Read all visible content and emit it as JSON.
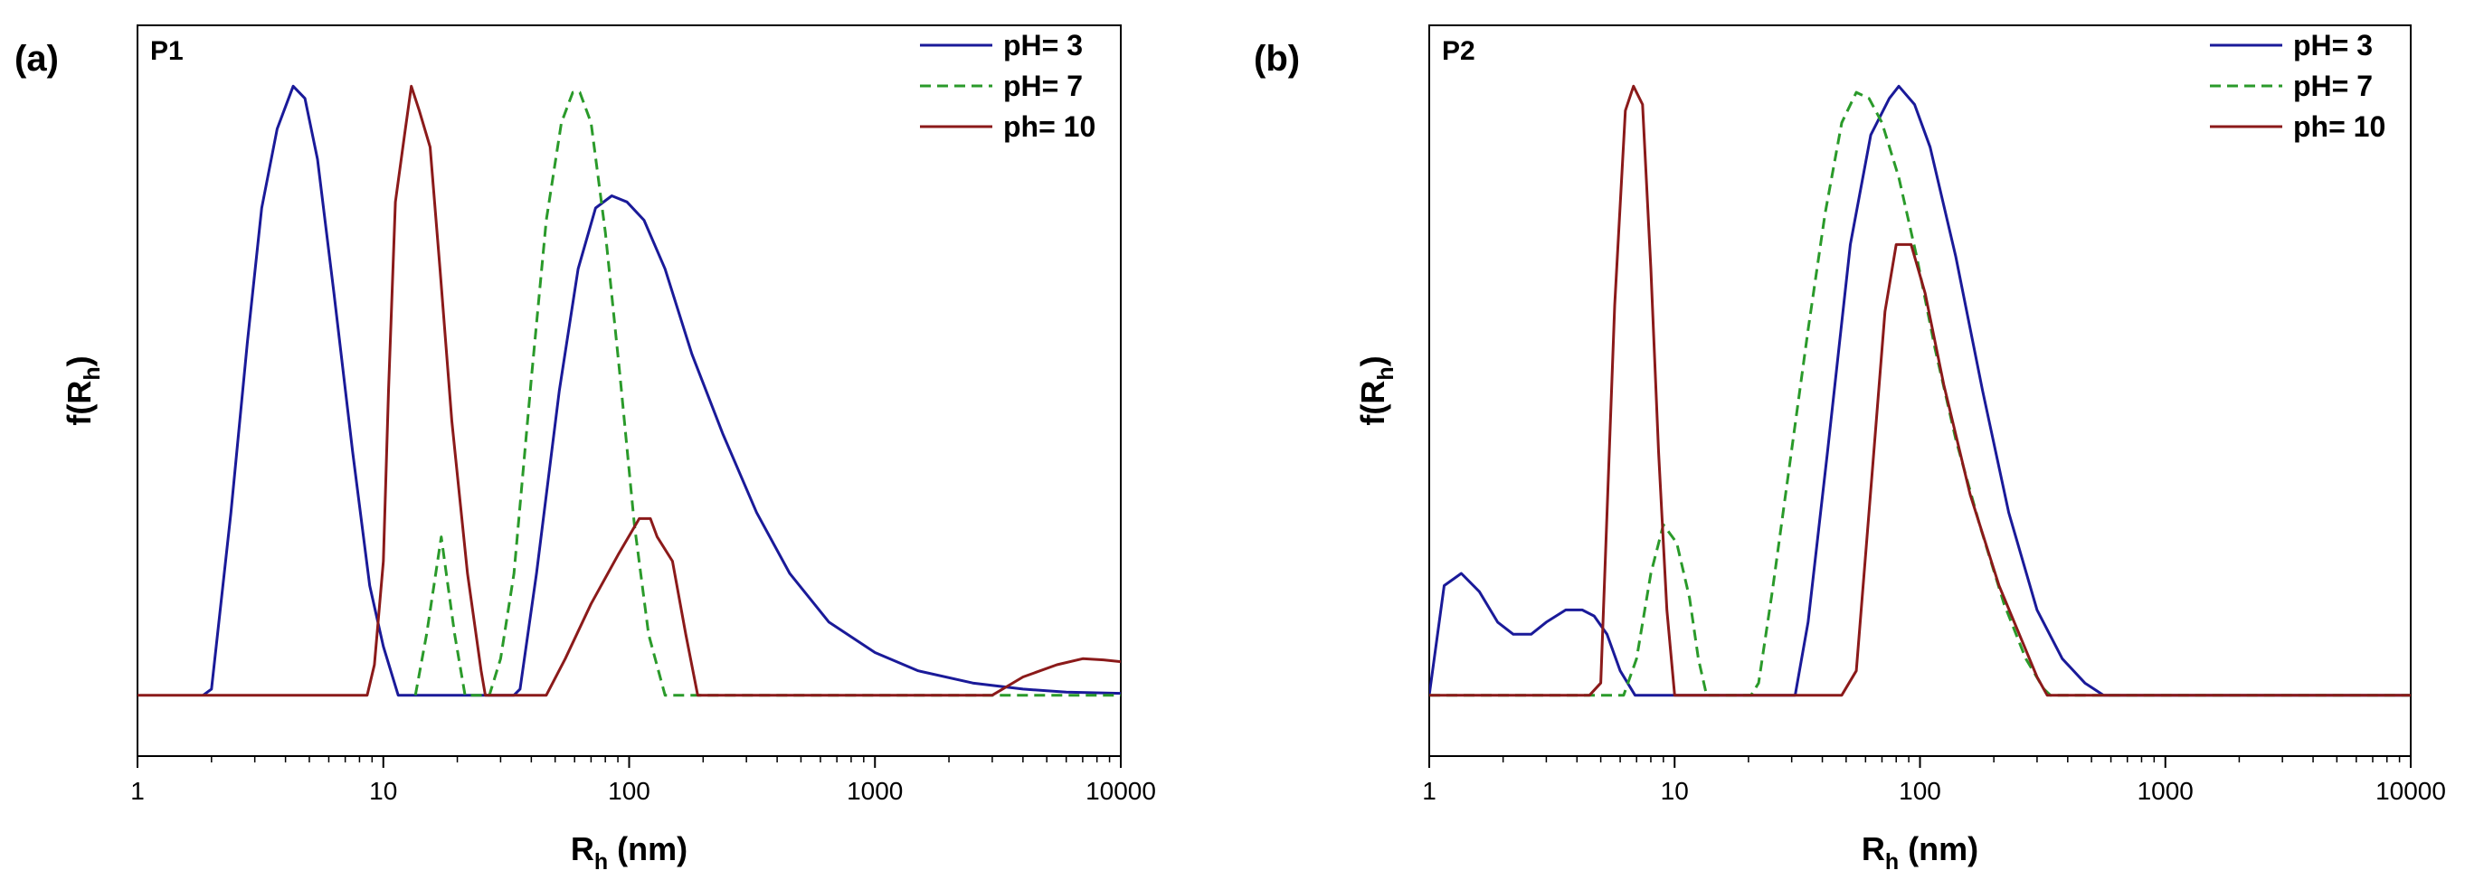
{
  "chart_data": [
    {
      "type": "line",
      "panel_label": "(a)",
      "title": "P1",
      "xlabel_main": "R",
      "xlabel_sub": "h",
      "xlabel_unit": " (nm)",
      "ylabel_main": "f(R",
      "ylabel_sub": "h",
      "ylabel_close": ")",
      "xscale": "log",
      "xlim": [
        1,
        10000
      ],
      "ylim": [
        -0.1,
        1.1
      ],
      "x_ticks": [
        1,
        10,
        100,
        1000,
        10000
      ],
      "x_tick_labels": [
        "1",
        "10",
        "100",
        "1000",
        "10000"
      ],
      "legend_position": "top-right",
      "series": [
        {
          "name": "pH= 3",
          "color": "#1a1a99",
          "dash": "solid",
          "points": [
            [
              1.85,
              0
            ],
            [
              2.0,
              0.01
            ],
            [
              2.4,
              0.3
            ],
            [
              2.8,
              0.58
            ],
            [
              3.2,
              0.8
            ],
            [
              3.7,
              0.93
            ],
            [
              4.3,
              1.0
            ],
            [
              4.8,
              0.98
            ],
            [
              5.4,
              0.88
            ],
            [
              6.3,
              0.66
            ],
            [
              7.5,
              0.4
            ],
            [
              8.8,
              0.18
            ],
            [
              10,
              0.08
            ],
            [
              11.5,
              0
            ],
            [
              34,
              0
            ],
            [
              36,
              0.01
            ],
            [
              42,
              0.2
            ],
            [
              52,
              0.5
            ],
            [
              62,
              0.7
            ],
            [
              73,
              0.8
            ],
            [
              85,
              0.82
            ],
            [
              98,
              0.81
            ],
            [
              115,
              0.78
            ],
            [
              140,
              0.7
            ],
            [
              180,
              0.56
            ],
            [
              240,
              0.43
            ],
            [
              330,
              0.3
            ],
            [
              450,
              0.2
            ],
            [
              650,
              0.12
            ],
            [
              1000,
              0.07
            ],
            [
              1500,
              0.04
            ],
            [
              2500,
              0.02
            ],
            [
              4000,
              0.01
            ],
            [
              6000,
              0.005
            ],
            [
              10000,
              0.003
            ]
          ]
        },
        {
          "name": "pH= 7",
          "color": "#2a9a2a",
          "dash": "dashed",
          "points": [
            [
              13.5,
              0
            ],
            [
              15,
              0.1
            ],
            [
              17.2,
              0.26
            ],
            [
              19.5,
              0.1
            ],
            [
              21.5,
              0
            ],
            [
              27,
              0
            ],
            [
              30,
              0.06
            ],
            [
              34,
              0.2
            ],
            [
              40,
              0.52
            ],
            [
              46,
              0.78
            ],
            [
              53,
              0.94
            ],
            [
              59,
              0.99
            ],
            [
              63,
              0.99
            ],
            [
              70,
              0.94
            ],
            [
              80,
              0.76
            ],
            [
              92,
              0.52
            ],
            [
              105,
              0.28
            ],
            [
              120,
              0.1
            ],
            [
              140,
              0
            ],
            [
              10000,
              0
            ]
          ]
        },
        {
          "name": "ph= 10",
          "color": "#8b1a1a",
          "dash": "solid",
          "points": [
            [
              1,
              0
            ],
            [
              8.6,
              0
            ],
            [
              9.2,
              0.05
            ],
            [
              10,
              0.22
            ],
            [
              10.5,
              0.5
            ],
            [
              11.2,
              0.81
            ],
            [
              12.2,
              0.92
            ],
            [
              13,
              1.0
            ],
            [
              14,
              0.96
            ],
            [
              15.5,
              0.9
            ],
            [
              17,
              0.7
            ],
            [
              19,
              0.45
            ],
            [
              22,
              0.2
            ],
            [
              25,
              0.04
            ],
            [
              26,
              0
            ],
            [
              46,
              0
            ],
            [
              55,
              0.06
            ],
            [
              70,
              0.15
            ],
            [
              90,
              0.23
            ],
            [
              110,
              0.29
            ],
            [
              122,
              0.29
            ],
            [
              130,
              0.26
            ],
            [
              150,
              0.22
            ],
            [
              170,
              0.1
            ],
            [
              190,
              0
            ],
            [
              3000,
              0
            ],
            [
              4000,
              0.03
            ],
            [
              5500,
              0.05
            ],
            [
              7000,
              0.06
            ],
            [
              8500,
              0.058
            ],
            [
              10000,
              0.055
            ]
          ]
        }
      ]
    },
    {
      "type": "line",
      "panel_label": "(b)",
      "title": "P2",
      "xlabel_main": "R",
      "xlabel_sub": "h",
      "xlabel_unit": " (nm)",
      "ylabel_main": "f(R",
      "ylabel_sub": "h",
      "ylabel_close": ")",
      "xscale": "log",
      "xlim": [
        1,
        10000
      ],
      "ylim": [
        -0.1,
        1.1
      ],
      "x_ticks": [
        1,
        10,
        100,
        1000,
        10000
      ],
      "x_tick_labels": [
        "1",
        "10",
        "100",
        "1000",
        "10000"
      ],
      "legend_position": "top-right",
      "series": [
        {
          "name": "pH= 3",
          "color": "#1a1a99",
          "dash": "solid",
          "points": [
            [
              1.0,
              0
            ],
            [
              1.15,
              0.18
            ],
            [
              1.35,
              0.2
            ],
            [
              1.6,
              0.17
            ],
            [
              1.9,
              0.12
            ],
            [
              2.2,
              0.1
            ],
            [
              2.6,
              0.1
            ],
            [
              3.0,
              0.12
            ],
            [
              3.6,
              0.14
            ],
            [
              4.2,
              0.14
            ],
            [
              4.7,
              0.13
            ],
            [
              5.3,
              0.1
            ],
            [
              6.0,
              0.04
            ],
            [
              6.9,
              0
            ],
            [
              31,
              0
            ],
            [
              35,
              0.12
            ],
            [
              42,
              0.4
            ],
            [
              52,
              0.74
            ],
            [
              63,
              0.92
            ],
            [
              75,
              0.98
            ],
            [
              82,
              1.0
            ],
            [
              95,
              0.97
            ],
            [
              110,
              0.9
            ],
            [
              140,
              0.72
            ],
            [
              180,
              0.5
            ],
            [
              230,
              0.3
            ],
            [
              300,
              0.14
            ],
            [
              380,
              0.06
            ],
            [
              470,
              0.02
            ],
            [
              560,
              0
            ],
            [
              10000,
              0
            ]
          ]
        },
        {
          "name": "pH= 7",
          "color": "#2a9a2a",
          "dash": "dashed",
          "points": [
            [
              1,
              0
            ],
            [
              6.2,
              0
            ],
            [
              7.0,
              0.06
            ],
            [
              8.0,
              0.2
            ],
            [
              9.0,
              0.28
            ],
            [
              10.2,
              0.25
            ],
            [
              11.5,
              0.16
            ],
            [
              12.5,
              0.06
            ],
            [
              13.5,
              0
            ],
            [
              20.5,
              0
            ],
            [
              22,
              0.02
            ],
            [
              25,
              0.17
            ],
            [
              29,
              0.36
            ],
            [
              35,
              0.6
            ],
            [
              41,
              0.79
            ],
            [
              48,
              0.94
            ],
            [
              55,
              0.99
            ],
            [
              62,
              0.98
            ],
            [
              70,
              0.94
            ],
            [
              82,
              0.85
            ],
            [
              97,
              0.72
            ],
            [
              115,
              0.57
            ],
            [
              140,
              0.42
            ],
            [
              175,
              0.28
            ],
            [
              220,
              0.15
            ],
            [
              270,
              0.06
            ],
            [
              320,
              0.01
            ],
            [
              340,
              0
            ],
            [
              10000,
              0
            ]
          ]
        },
        {
          "name": "ph= 10",
          "color": "#8b1a1a",
          "dash": "solid",
          "points": [
            [
              1,
              0
            ],
            [
              4.5,
              0
            ],
            [
              5.0,
              0.02
            ],
            [
              5.7,
              0.64
            ],
            [
              6.3,
              0.96
            ],
            [
              6.8,
              1.0
            ],
            [
              7.4,
              0.97
            ],
            [
              8.0,
              0.7
            ],
            [
              8.6,
              0.4
            ],
            [
              9.3,
              0.14
            ],
            [
              10,
              0
            ],
            [
              48,
              0
            ],
            [
              55,
              0.04
            ],
            [
              64,
              0.37
            ],
            [
              72,
              0.63
            ],
            [
              80,
              0.74
            ],
            [
              92,
              0.74
            ],
            [
              105,
              0.66
            ],
            [
              125,
              0.51
            ],
            [
              160,
              0.33
            ],
            [
              210,
              0.18
            ],
            [
              260,
              0.09
            ],
            [
              300,
              0.03
            ],
            [
              330,
              0
            ],
            [
              10000,
              0
            ]
          ]
        }
      ]
    }
  ]
}
